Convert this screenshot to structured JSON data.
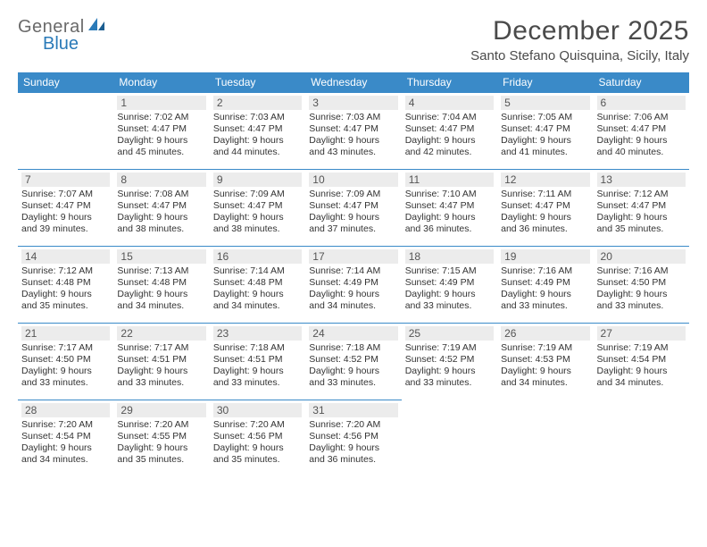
{
  "brand": {
    "line1": "General",
    "line2": "Blue"
  },
  "title": "December 2025",
  "location": "Santo Stefano Quisquina, Sicily, Italy",
  "colors": {
    "header_bg": "#3a8ac8",
    "header_text": "#ffffff",
    "daynum_bg": "#ececec",
    "border": "#3a8ac8",
    "brand_gray": "#6a6a6a",
    "brand_blue": "#2a7ab8"
  },
  "weekdays": [
    "Sunday",
    "Monday",
    "Tuesday",
    "Wednesday",
    "Thursday",
    "Friday",
    "Saturday"
  ],
  "grid": [
    [
      {
        "day": null
      },
      {
        "day": 1,
        "sunrise": "7:02 AM",
        "sunset": "4:47 PM",
        "daylight": "9 hours and 45 minutes."
      },
      {
        "day": 2,
        "sunrise": "7:03 AM",
        "sunset": "4:47 PM",
        "daylight": "9 hours and 44 minutes."
      },
      {
        "day": 3,
        "sunrise": "7:03 AM",
        "sunset": "4:47 PM",
        "daylight": "9 hours and 43 minutes."
      },
      {
        "day": 4,
        "sunrise": "7:04 AM",
        "sunset": "4:47 PM",
        "daylight": "9 hours and 42 minutes."
      },
      {
        "day": 5,
        "sunrise": "7:05 AM",
        "sunset": "4:47 PM",
        "daylight": "9 hours and 41 minutes."
      },
      {
        "day": 6,
        "sunrise": "7:06 AM",
        "sunset": "4:47 PM",
        "daylight": "9 hours and 40 minutes."
      }
    ],
    [
      {
        "day": 7,
        "sunrise": "7:07 AM",
        "sunset": "4:47 PM",
        "daylight": "9 hours and 39 minutes."
      },
      {
        "day": 8,
        "sunrise": "7:08 AM",
        "sunset": "4:47 PM",
        "daylight": "9 hours and 38 minutes."
      },
      {
        "day": 9,
        "sunrise": "7:09 AM",
        "sunset": "4:47 PM",
        "daylight": "9 hours and 38 minutes."
      },
      {
        "day": 10,
        "sunrise": "7:09 AM",
        "sunset": "4:47 PM",
        "daylight": "9 hours and 37 minutes."
      },
      {
        "day": 11,
        "sunrise": "7:10 AM",
        "sunset": "4:47 PM",
        "daylight": "9 hours and 36 minutes."
      },
      {
        "day": 12,
        "sunrise": "7:11 AM",
        "sunset": "4:47 PM",
        "daylight": "9 hours and 36 minutes."
      },
      {
        "day": 13,
        "sunrise": "7:12 AM",
        "sunset": "4:47 PM",
        "daylight": "9 hours and 35 minutes."
      }
    ],
    [
      {
        "day": 14,
        "sunrise": "7:12 AM",
        "sunset": "4:48 PM",
        "daylight": "9 hours and 35 minutes."
      },
      {
        "day": 15,
        "sunrise": "7:13 AM",
        "sunset": "4:48 PM",
        "daylight": "9 hours and 34 minutes."
      },
      {
        "day": 16,
        "sunrise": "7:14 AM",
        "sunset": "4:48 PM",
        "daylight": "9 hours and 34 minutes."
      },
      {
        "day": 17,
        "sunrise": "7:14 AM",
        "sunset": "4:49 PM",
        "daylight": "9 hours and 34 minutes."
      },
      {
        "day": 18,
        "sunrise": "7:15 AM",
        "sunset": "4:49 PM",
        "daylight": "9 hours and 33 minutes."
      },
      {
        "day": 19,
        "sunrise": "7:16 AM",
        "sunset": "4:49 PM",
        "daylight": "9 hours and 33 minutes."
      },
      {
        "day": 20,
        "sunrise": "7:16 AM",
        "sunset": "4:50 PM",
        "daylight": "9 hours and 33 minutes."
      }
    ],
    [
      {
        "day": 21,
        "sunrise": "7:17 AM",
        "sunset": "4:50 PM",
        "daylight": "9 hours and 33 minutes."
      },
      {
        "day": 22,
        "sunrise": "7:17 AM",
        "sunset": "4:51 PM",
        "daylight": "9 hours and 33 minutes."
      },
      {
        "day": 23,
        "sunrise": "7:18 AM",
        "sunset": "4:51 PM",
        "daylight": "9 hours and 33 minutes."
      },
      {
        "day": 24,
        "sunrise": "7:18 AM",
        "sunset": "4:52 PM",
        "daylight": "9 hours and 33 minutes."
      },
      {
        "day": 25,
        "sunrise": "7:19 AM",
        "sunset": "4:52 PM",
        "daylight": "9 hours and 33 minutes."
      },
      {
        "day": 26,
        "sunrise": "7:19 AM",
        "sunset": "4:53 PM",
        "daylight": "9 hours and 34 minutes."
      },
      {
        "day": 27,
        "sunrise": "7:19 AM",
        "sunset": "4:54 PM",
        "daylight": "9 hours and 34 minutes."
      }
    ],
    [
      {
        "day": 28,
        "sunrise": "7:20 AM",
        "sunset": "4:54 PM",
        "daylight": "9 hours and 34 minutes."
      },
      {
        "day": 29,
        "sunrise": "7:20 AM",
        "sunset": "4:55 PM",
        "daylight": "9 hours and 35 minutes."
      },
      {
        "day": 30,
        "sunrise": "7:20 AM",
        "sunset": "4:56 PM",
        "daylight": "9 hours and 35 minutes."
      },
      {
        "day": 31,
        "sunrise": "7:20 AM",
        "sunset": "4:56 PM",
        "daylight": "9 hours and 36 minutes."
      },
      {
        "day": null
      },
      {
        "day": null
      },
      {
        "day": null
      }
    ]
  ],
  "labels": {
    "sunrise": "Sunrise:",
    "sunset": "Sunset:",
    "daylight": "Daylight:"
  }
}
